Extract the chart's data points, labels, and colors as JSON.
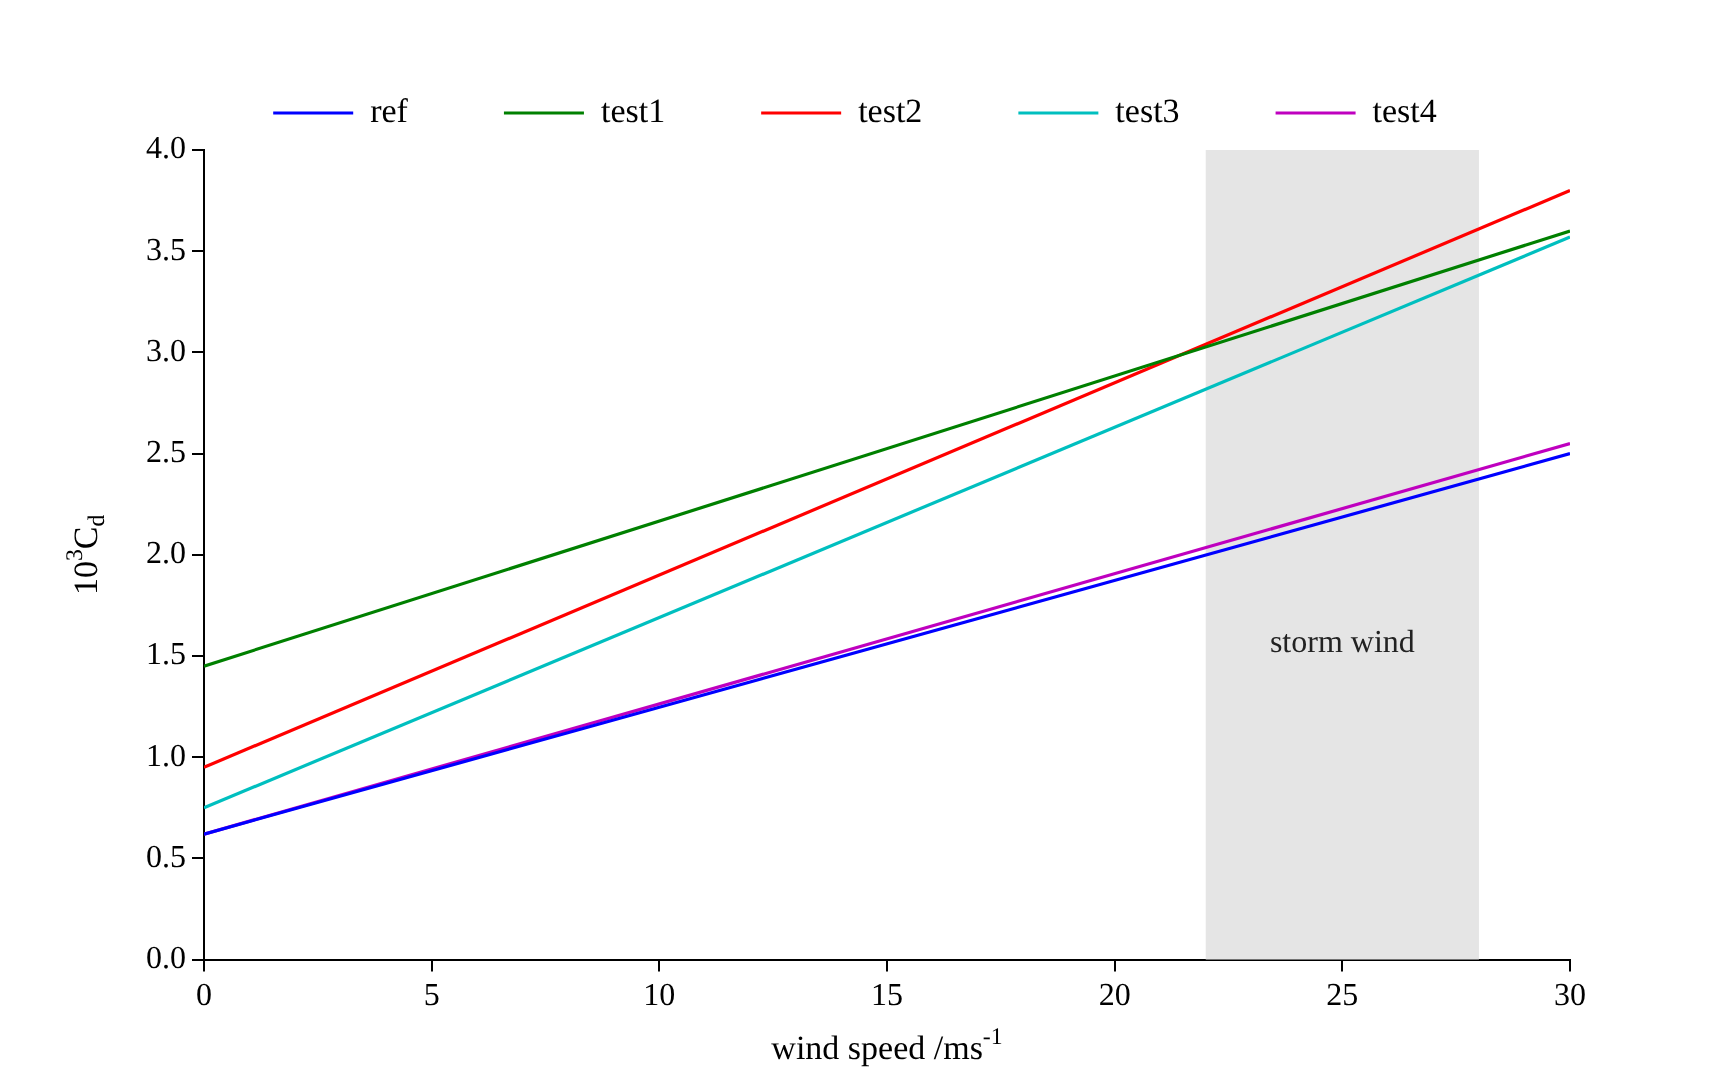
{
  "chart_data": {
    "type": "line",
    "xlabel": "wind speed /ms$^{-1}$",
    "ylabel": "10$^{3}$C$_{d}$",
    "x": [
      0,
      30
    ],
    "series": [
      {
        "name": "ref",
        "color": "#0000ff",
        "values": [
          0.62,
          2.5
        ]
      },
      {
        "name": "test1",
        "color": "#008000",
        "values": [
          1.45,
          3.6
        ]
      },
      {
        "name": "test2",
        "color": "#ff0000",
        "values": [
          0.95,
          3.8
        ]
      },
      {
        "name": "test3",
        "color": "#00bfbf",
        "values": [
          0.75,
          3.57
        ]
      },
      {
        "name": "test4",
        "color": "#bf00bf",
        "values": [
          0.62,
          2.55
        ]
      }
    ],
    "xlim": [
      0,
      30
    ],
    "xticks": [
      0,
      5,
      10,
      15,
      20,
      25,
      30
    ],
    "ylim": [
      0,
      4
    ],
    "yticks": [
      {
        "value": 0,
        "label": "0.0"
      },
      {
        "value": 0.5,
        "label": "0.5"
      },
      {
        "value": 1,
        "label": "1.0"
      },
      {
        "value": 1.5,
        "label": "1.5"
      },
      {
        "value": 2,
        "label": "2.0"
      },
      {
        "value": 2.5,
        "label": "2.5"
      },
      {
        "value": 3,
        "label": "3.0"
      },
      {
        "value": 3.5,
        "label": "3.5"
      },
      {
        "value": 4,
        "label": "4.0"
      }
    ],
    "bands": [
      {
        "axis": "x",
        "from": 22,
        "to": 28,
        "label": "storm wind",
        "color": "#e5e5e5"
      }
    ],
    "grid": false,
    "legend": "top",
    "marker": "none",
    "line_style": "solid"
  }
}
